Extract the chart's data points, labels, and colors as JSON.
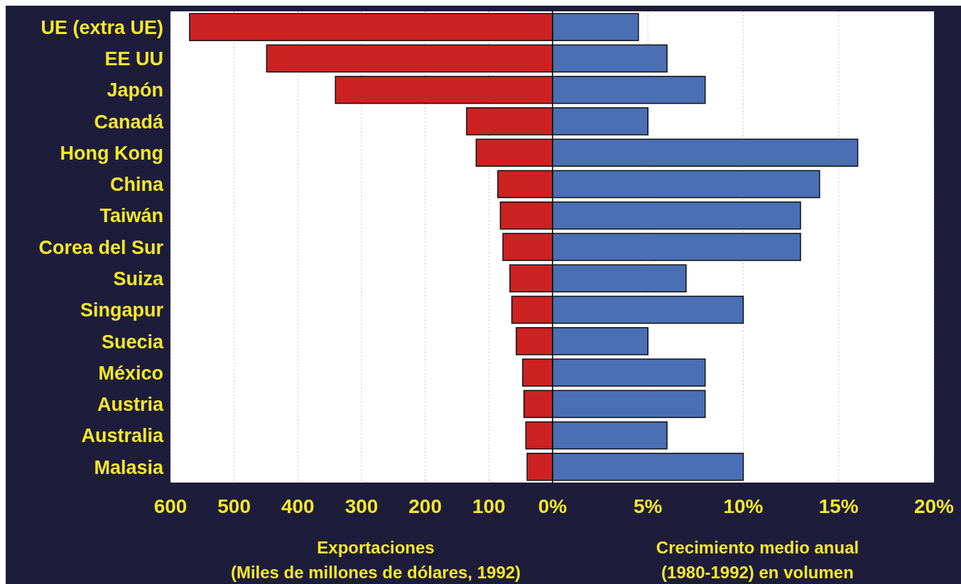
{
  "chart_data": [
    {
      "type": "bar",
      "orientation": "horizontal",
      "categories": [
        "UE (extra UE)",
        "EE UU",
        "Japón",
        "Canadá",
        "Hong Kong",
        "China",
        "Taiwán",
        "Corea del Sur",
        "Suiza",
        "Singapur",
        "Suecia",
        "México",
        "Austria",
        "Australia",
        "Malasia"
      ],
      "values": [
        570,
        449,
        341,
        135,
        120,
        86,
        82,
        78,
        67,
        64,
        57,
        47,
        45,
        42,
        40
      ],
      "color": "#cc2222",
      "xlim": [
        600,
        0
      ],
      "xticks": [
        600,
        500,
        400,
        300,
        200,
        100
      ],
      "grid": "x",
      "xlabel": "Exportaciones\n(Miles de millones de dólares, 1992)"
    },
    {
      "type": "bar",
      "orientation": "horizontal",
      "values": [
        4.5,
        6,
        8,
        5,
        16,
        14,
        13,
        13,
        7,
        10,
        5,
        8,
        8,
        6,
        10
      ],
      "color": "#4a6fb5",
      "xlim": [
        0,
        20
      ],
      "xticks": [
        {
          "value": 0,
          "label": "0%"
        },
        {
          "value": 5,
          "label": "5%"
        },
        {
          "value": 10,
          "label": "10%"
        },
        {
          "value": 15,
          "label": "15%"
        },
        {
          "value": 20,
          "label": "20%"
        }
      ],
      "grid": "x",
      "tick_labels": "x",
      "xlabel": "Crecimiento medio anual\n(1980-1992) en volumen"
    }
  ]
}
